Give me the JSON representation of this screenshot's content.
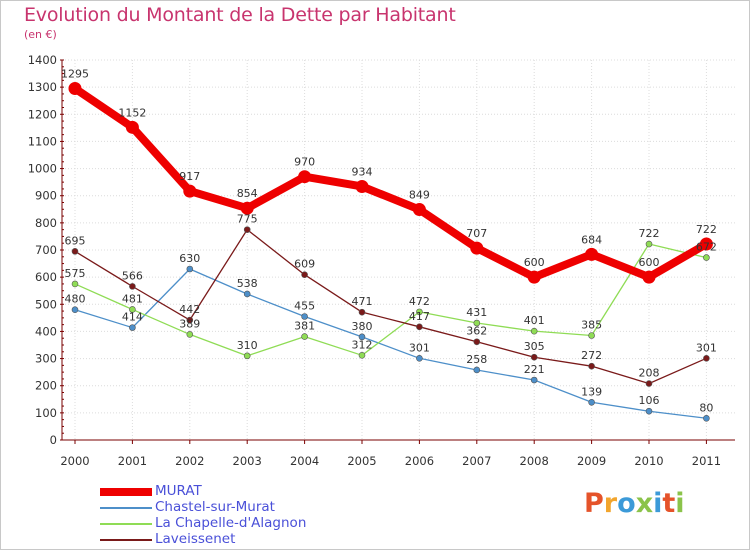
{
  "title": "Evolution du Montant de la Dette par Habitant",
  "subtitle": "(en €)",
  "logo_text": "Proxiti",
  "colors": {
    "title": "#c8346e",
    "axis": "#7a0000",
    "grid": "#dcdcdc",
    "legend_text": "#4a50d8",
    "logo": [
      "#e5532a",
      "#f2a52d",
      "#3c9ad8",
      "#8bc34a",
      "#3c9ad8",
      "#e5532a",
      "#8bc34a"
    ]
  },
  "chart_data": {
    "type": "line",
    "title": "Evolution du Montant de la Dette par Habitant",
    "ylabel": "(en €)",
    "xlabel": "",
    "x": [
      "2000",
      "2001",
      "2002",
      "2003",
      "2004",
      "2005",
      "2006",
      "2007",
      "2008",
      "2009",
      "2010",
      "2011"
    ],
    "ylim": [
      0,
      1400
    ],
    "yticks": [
      0,
      100,
      200,
      300,
      400,
      500,
      600,
      700,
      800,
      900,
      1000,
      1100,
      1200,
      1300,
      1400
    ],
    "grid": true,
    "legend_position": "bottom-left",
    "series": [
      {
        "name": "MURAT",
        "color": "#ee0000",
        "values": [
          1295,
          1152,
          917,
          854,
          970,
          934,
          849,
          707,
          600,
          684,
          600,
          722
        ],
        "labels": [
          "1295",
          "1152",
          "917",
          "854",
          "970",
          "934",
          "849",
          "707",
          "600",
          "684",
          "600",
          "722"
        ],
        "label_pos": [
          "up",
          "up",
          "up",
          "up",
          "up",
          "up",
          "up",
          "up",
          "up",
          "up",
          "up",
          "up"
        ]
      },
      {
        "name": "Chastel-sur-Murat",
        "color": "#4d8fc9",
        "values": [
          480,
          414,
          630,
          538,
          455,
          380,
          301,
          258,
          221,
          139,
          106,
          80
        ],
        "labels": [
          "480",
          "414",
          "630",
          "538",
          "455",
          "380",
          "301",
          "258",
          "221",
          "139",
          "106",
          "80"
        ],
        "label_pos": [
          "up",
          "up",
          "up",
          "up",
          "up",
          "up",
          "up",
          "up",
          "up",
          "up",
          "up",
          "up"
        ]
      },
      {
        "name": "La Chapelle-d'Alagnon",
        "color": "#8fdc55",
        "values": [
          575,
          481,
          389,
          310,
          381,
          312,
          472,
          431,
          401,
          385,
          722,
          672
        ],
        "labels": [
          "575",
          "481",
          "389",
          "310",
          "381",
          "312",
          "472",
          "431",
          "401",
          "385",
          "722",
          "672"
        ],
        "label_pos": [
          "up",
          "up",
          "up",
          "up",
          "up",
          "up",
          "up",
          "up",
          "up",
          "up",
          "up",
          "up"
        ]
      },
      {
        "name": "Laveissenet",
        "color": "#7a1a1a",
        "values": [
          695,
          566,
          442,
          775,
          609,
          471,
          417,
          362,
          305,
          272,
          208,
          301
        ],
        "labels": [
          "695",
          "566",
          "442",
          "775",
          "609",
          "471",
          "417",
          "362",
          "305",
          "272",
          "208",
          "301"
        ],
        "label_pos": [
          "up",
          "up",
          "up",
          "up",
          "up",
          "up",
          "up",
          "up",
          "up",
          "up",
          "up",
          "up"
        ]
      }
    ]
  }
}
